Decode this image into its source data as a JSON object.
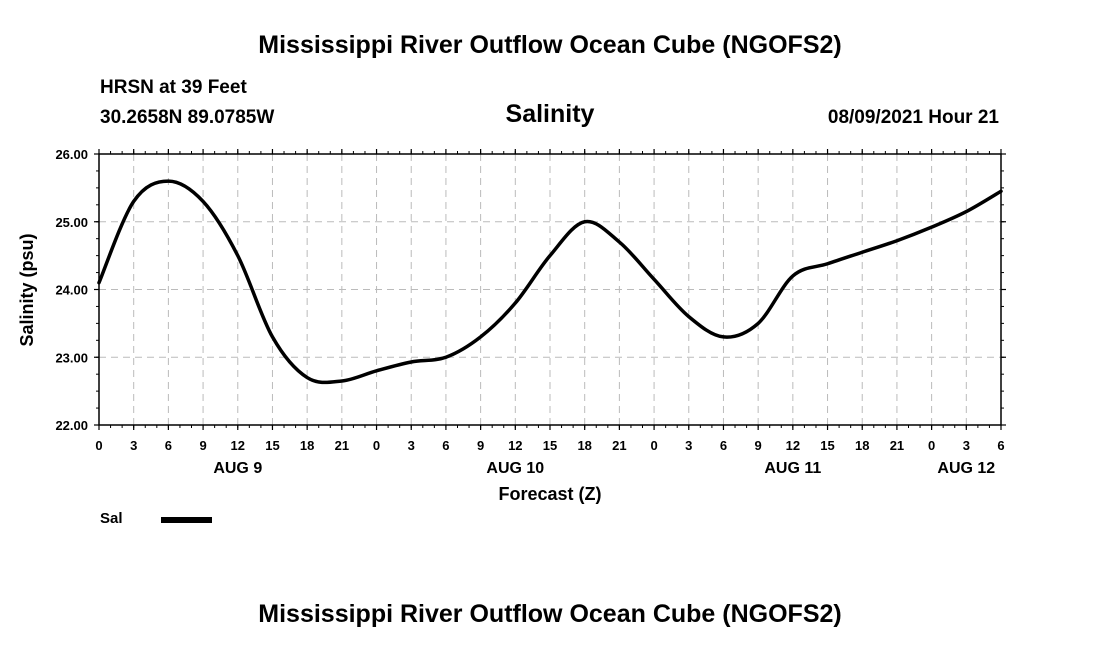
{
  "page": {
    "title": "Mississippi River Outflow Ocean Cube (NGOFS2)",
    "footer_title": "Mississippi River Outflow Ocean Cube (NGOFS2)",
    "station": "HRSN at 39 Feet",
    "coordinates": "30.2658N  89.0785W",
    "datetime": "08/09/2021 Hour 21"
  },
  "chart_data": {
    "type": "line",
    "title": "Salinity",
    "xlabel": "Forecast (Z)",
    "ylabel": "Salinity (psu)",
    "ylim": [
      22.0,
      26.0
    ],
    "xlim": [
      0,
      78
    ],
    "y_ticks": [
      "22.00",
      "23.00",
      "24.00",
      "25.00",
      "26.00"
    ],
    "y_tick_values": [
      22,
      23,
      24,
      25,
      26
    ],
    "x_tick_labels": [
      "0",
      "3",
      "6",
      "9",
      "12",
      "15",
      "18",
      "21",
      "0",
      "3",
      "6",
      "9",
      "12",
      "15",
      "18",
      "21",
      "0",
      "3",
      "6",
      "9",
      "12",
      "15",
      "18",
      "21",
      "0",
      "3",
      "6"
    ],
    "date_labels": [
      {
        "label": "AUG 9",
        "hour": 12
      },
      {
        "label": "AUG 10",
        "hour": 36
      },
      {
        "label": "AUG 11",
        "hour": 60
      },
      {
        "label": "AUG 12",
        "hour": 75
      }
    ],
    "grid": true,
    "series": [
      {
        "name": "Sal",
        "x": [
          0,
          3,
          6,
          9,
          12,
          15,
          18,
          21,
          24,
          27,
          30,
          33,
          36,
          39,
          42,
          45,
          48,
          51,
          54,
          57,
          60,
          63,
          66,
          69,
          72,
          75,
          78
        ],
        "values": [
          24.1,
          25.3,
          25.6,
          25.3,
          24.5,
          23.3,
          22.7,
          22.65,
          22.8,
          22.93,
          23.0,
          23.3,
          23.8,
          24.5,
          25.0,
          24.7,
          24.15,
          23.6,
          23.3,
          23.5,
          24.2,
          24.38,
          24.55,
          24.72,
          24.92,
          25.15,
          25.45
        ]
      }
    ],
    "legend": [
      {
        "label": "Sal",
        "position": "bottom-left"
      }
    ]
  }
}
